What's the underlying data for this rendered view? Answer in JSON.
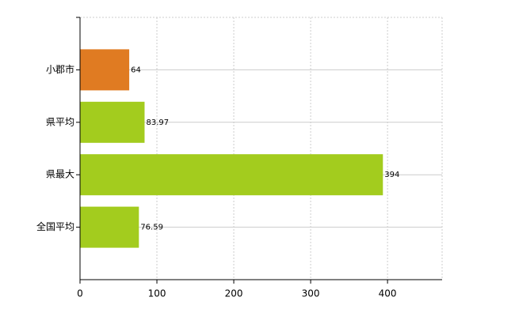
{
  "chart_data": {
    "type": "bar",
    "orientation": "horizontal",
    "categories": [
      "小郡市",
      "県平均",
      "県最大",
      "全国平均"
    ],
    "values": [
      64,
      83.97,
      394,
      76.59
    ],
    "colors": [
      "#e07b22",
      "#a3cc1e",
      "#a3cc1e",
      "#a3cc1e"
    ],
    "xlim": [
      0,
      471
    ],
    "xticks": [
      0,
      100,
      200,
      300,
      400
    ],
    "grid": true
  }
}
